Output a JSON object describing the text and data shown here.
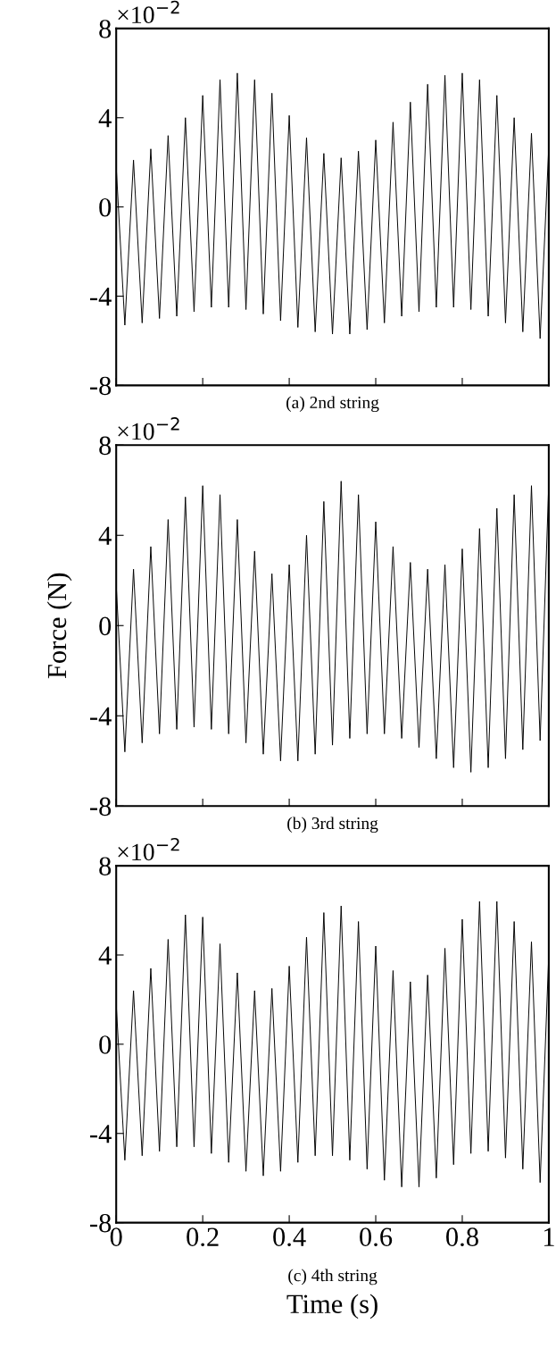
{
  "chart_data": [
    {
      "type": "line",
      "xlim": [
        0,
        1
      ],
      "ylim": [
        -8,
        8
      ],
      "xticks": [
        {
          "value": 0,
          "label": null
        },
        {
          "value": 0.2,
          "label": null
        },
        {
          "value": 0.4,
          "label": null
        },
        {
          "value": 0.6,
          "label": null
        },
        {
          "value": 0.8,
          "label": null
        },
        {
          "value": 1,
          "label": null
        }
      ],
      "yticks": [
        -8,
        -4,
        0,
        4,
        8
      ],
      "tick_labels": "y",
      "grid": false,
      "legend": false,
      "annotations": [
        "×10$^{−2}$",
        "(a) 2nd string"
      ],
      "x": [
        0,
        0.02,
        0.04,
        0.06,
        0.08,
        0.1,
        0.12,
        0.14,
        0.16,
        0.18,
        0.2,
        0.22,
        0.24,
        0.26,
        0.28,
        0.3,
        0.32,
        0.34,
        0.36,
        0.38,
        0.4,
        0.42,
        0.44,
        0.46,
        0.48,
        0.5,
        0.52,
        0.54,
        0.56,
        0.58,
        0.6,
        0.62,
        0.64,
        0.66,
        0.68,
        0.7,
        0.72,
        0.74,
        0.76,
        0.78,
        0.8,
        0.82,
        0.84,
        0.86,
        0.88,
        0.9,
        0.92,
        0.94,
        0.96,
        0.98,
        1
      ],
      "series": [
        {
          "color": "#000000",
          "values": [
            1.8,
            -5.3,
            2.1,
            -5.2,
            2.6,
            -5.0,
            3.2,
            -4.9,
            4.0,
            -4.7,
            5.0,
            -4.5,
            5.7,
            -4.5,
            6.0,
            -4.6,
            5.7,
            -4.8,
            5.1,
            -5.1,
            4.1,
            -5.4,
            3.1,
            -5.6,
            2.4,
            -5.7,
            2.2,
            -5.7,
            2.5,
            -5.5,
            3.0,
            -5.2,
            3.8,
            -4.9,
            4.7,
            -4.7,
            5.5,
            -4.5,
            5.9,
            -4.5,
            6.0,
            -4.6,
            5.7,
            -4.9,
            5.0,
            -5.2,
            4.0,
            -5.6,
            3.3,
            -5.9,
            2.7
          ]
        }
      ]
    },
    {
      "type": "line",
      "xlim": [
        0,
        1
      ],
      "ylim": [
        -8,
        8
      ],
      "xticks": [
        {
          "value": 0,
          "label": null
        },
        {
          "value": 0.2,
          "label": null
        },
        {
          "value": 0.4,
          "label": null
        },
        {
          "value": 0.6,
          "label": null
        },
        {
          "value": 0.8,
          "label": null
        },
        {
          "value": 1,
          "label": null
        }
      ],
      "yticks": [
        -8,
        -4,
        0,
        4,
        8
      ],
      "tick_labels": "y",
      "grid": false,
      "legend": false,
      "ylabel": "Force (N)",
      "annotations": [
        "×10$^{−2}$",
        "(b) 3rd string"
      ],
      "x": [
        0,
        0.02,
        0.04,
        0.06,
        0.08,
        0.1,
        0.12,
        0.14,
        0.16,
        0.18,
        0.2,
        0.22,
        0.24,
        0.26,
        0.28,
        0.3,
        0.32,
        0.34,
        0.36,
        0.38,
        0.4,
        0.42,
        0.44,
        0.46,
        0.48,
        0.5,
        0.52,
        0.54,
        0.56,
        0.58,
        0.6,
        0.62,
        0.64,
        0.66,
        0.68,
        0.7,
        0.72,
        0.74,
        0.76,
        0.78,
        0.8,
        0.82,
        0.84,
        0.86,
        0.88,
        0.9,
        0.92,
        0.94,
        0.96,
        0.98,
        1
      ],
      "series": [
        {
          "color": "#000000",
          "values": [
            1.8,
            -5.6,
            2.5,
            -5.2,
            3.5,
            -4.8,
            4.7,
            -4.6,
            5.7,
            -4.5,
            6.2,
            -4.6,
            5.8,
            -4.8,
            4.7,
            -5.2,
            3.3,
            -5.7,
            2.3,
            -6.0,
            2.7,
            -6.0,
            4.0,
            -5.7,
            5.5,
            -5.3,
            6.4,
            -5.0,
            5.8,
            -4.8,
            4.6,
            -4.8,
            3.5,
            -5.0,
            2.8,
            -5.4,
            2.5,
            -5.9,
            2.7,
            -6.3,
            3.4,
            -6.5,
            4.3,
            -6.3,
            5.2,
            -5.9,
            5.8,
            -5.5,
            6.2,
            -5.1,
            6.3
          ]
        }
      ]
    },
    {
      "type": "line",
      "xlim": [
        0,
        1
      ],
      "ylim": [
        -8,
        8
      ],
      "xticks": [
        0,
        0.2,
        0.4,
        0.6,
        0.8,
        1
      ],
      "yticks": [
        -8,
        -4,
        0,
        4,
        8
      ],
      "grid": false,
      "legend": false,
      "xlabel": "Time (s)",
      "annotations": [
        "×10$^{−2}$",
        "(c) 4th string"
      ],
      "x": [
        0,
        0.02,
        0.04,
        0.06,
        0.08,
        0.1,
        0.12,
        0.14,
        0.16,
        0.18,
        0.2,
        0.22,
        0.24,
        0.26,
        0.28,
        0.3,
        0.32,
        0.34,
        0.36,
        0.38,
        0.4,
        0.42,
        0.44,
        0.46,
        0.48,
        0.5,
        0.52,
        0.54,
        0.56,
        0.58,
        0.6,
        0.62,
        0.64,
        0.66,
        0.68,
        0.7,
        0.72,
        0.74,
        0.76,
        0.78,
        0.8,
        0.82,
        0.84,
        0.86,
        0.88,
        0.9,
        0.92,
        0.94,
        0.96,
        0.98,
        1
      ],
      "series": [
        {
          "color": "#000000",
          "values": [
            1.8,
            -5.2,
            2.4,
            -5.0,
            3.4,
            -4.8,
            4.7,
            -4.6,
            5.8,
            -4.6,
            5.7,
            -4.9,
            4.5,
            -5.3,
            3.2,
            -5.7,
            2.4,
            -5.9,
            2.5,
            -5.7,
            3.5,
            -5.3,
            4.8,
            -5.0,
            5.9,
            -5.0,
            6.2,
            -5.2,
            5.5,
            -5.6,
            4.4,
            -6.1,
            3.3,
            -6.4,
            2.8,
            -6.4,
            3.1,
            -6.0,
            4.3,
            -5.4,
            5.6,
            -4.9,
            6.4,
            -4.8,
            6.4,
            -5.1,
            5.5,
            -5.6,
            4.6,
            -6.2,
            4.0
          ]
        }
      ]
    }
  ]
}
